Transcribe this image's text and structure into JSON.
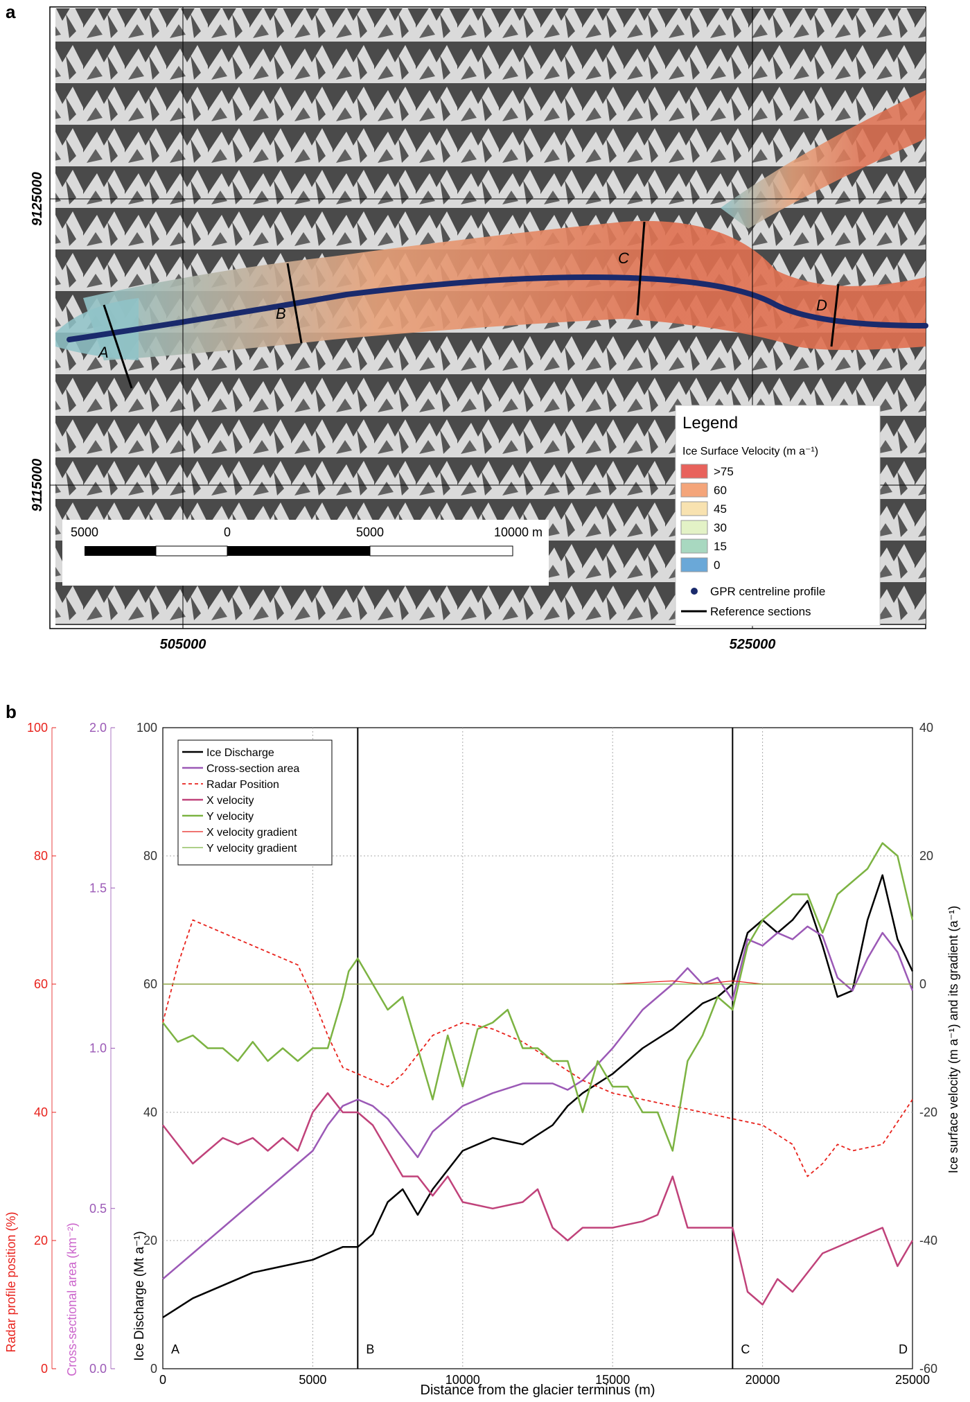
{
  "panel_a": {
    "label": "a",
    "x_ticks": [
      "505000",
      "525000"
    ],
    "y_ticks": [
      "9125000",
      "9115000"
    ],
    "section_labels": [
      "A",
      "B",
      "C",
      "D"
    ],
    "scalebar": {
      "labels": [
        "5000",
        "0",
        "5000",
        "10000 m"
      ]
    },
    "legend": {
      "title": "Legend",
      "subtitle": "Ice Surface Velocity (m a⁻¹)",
      "classes": [
        {
          "label": ">75",
          "color": "#e8625c"
        },
        {
          "label": "60",
          "color": "#f4a57a"
        },
        {
          "label": "45",
          "color": "#f8e2b0"
        },
        {
          "label": "30",
          "color": "#e3f2c6"
        },
        {
          "label": "15",
          "color": "#a8d8c0"
        },
        {
          "label": "0",
          "color": "#6aa8d8"
        }
      ],
      "gpr_label": "GPR centreline profile",
      "ref_label": "Reference sections"
    }
  },
  "panel_b": {
    "label": "b",
    "chart_data": {
      "type": "line",
      "xlabel": "Distance from the glacier terminus (m)",
      "xlim": [
        0,
        25000
      ],
      "x_ticks": [
        "0",
        "5000",
        "10000",
        "15000",
        "20000",
        "25000"
      ],
      "y_axes": [
        {
          "label": "Ice Discharge (Mt a⁻¹)",
          "range": [
            0,
            100
          ],
          "ticks": [
            "0",
            "20",
            "40",
            "60",
            "80",
            "100"
          ],
          "color": "#333333"
        },
        {
          "label": "Ice surface velocity (m a⁻¹) and its gradient (a⁻¹)",
          "range": [
            -60,
            40
          ],
          "ticks": [
            "-60",
            "-40",
            "-20",
            "0",
            "20",
            "40"
          ],
          "color": "#333333"
        },
        {
          "label": "Cross-sectional area (km⁻²)",
          "range": [
            0,
            2
          ],
          "ticks": [
            "0.0",
            "0.5",
            "1.0",
            "1.5",
            "2.0"
          ],
          "color": "#9b59b6"
        },
        {
          "label": "Radar profile position (%)",
          "range": [
            0,
            100
          ],
          "ticks": [
            "0",
            "20",
            "40",
            "60",
            "80",
            "100"
          ],
          "color": "#e8221c"
        }
      ],
      "section_lines": [
        {
          "label": "A",
          "x": 0
        },
        {
          "label": "B",
          "x": 6500
        },
        {
          "label": "C",
          "x": 19000
        },
        {
          "label": "D",
          "x": 25000
        }
      ],
      "legend": [
        "Ice Discharge",
        "Cross-section area",
        "Radar Position",
        "X velocity",
        "Y velocity",
        "X velocity gradient",
        "Y velocity gradient"
      ],
      "series": [
        {
          "name": "Ice Discharge",
          "axis": "left",
          "color": "#000000",
          "x": [
            0,
            1000,
            2000,
            3000,
            4000,
            5000,
            5500,
            6000,
            6500,
            7000,
            7500,
            8000,
            8500,
            9000,
            10000,
            11000,
            12000,
            13000,
            13500,
            14000,
            15000,
            16000,
            17000,
            18000,
            18500,
            19000,
            19500,
            20000,
            20500,
            21000,
            21500,
            22000,
            22500,
            23000,
            23500,
            24000,
            24500,
            25000
          ],
          "y": [
            8,
            11,
            13,
            15,
            16,
            17,
            18,
            19,
            19,
            21,
            26,
            28,
            24,
            28,
            34,
            36,
            35,
            38,
            41,
            43,
            46,
            50,
            53,
            57,
            58,
            60,
            68,
            70,
            68,
            70,
            73,
            66,
            58,
            59,
            70,
            77,
            67,
            62
          ]
        },
        {
          "name": "Cross-section area",
          "axis": "area",
          "color": "#9b59b6",
          "x": [
            0,
            1000,
            2000,
            3000,
            4000,
            5000,
            5500,
            6000,
            6500,
            7000,
            7500,
            8000,
            8500,
            9000,
            10000,
            11000,
            12000,
            13000,
            13500,
            14000,
            15000,
            16000,
            17000,
            17500,
            18000,
            18500,
            19000,
            19500,
            20000,
            20500,
            21000,
            21500,
            22000,
            22500,
            23000,
            23500,
            24000,
            24500,
            25000
          ],
          "y": [
            0.28,
            0.36,
            0.44,
            0.52,
            0.6,
            0.68,
            0.76,
            0.82,
            0.84,
            0.82,
            0.78,
            0.72,
            0.66,
            0.74,
            0.82,
            0.86,
            0.89,
            0.89,
            0.87,
            0.9,
            1.0,
            1.12,
            1.2,
            1.25,
            1.2,
            1.22,
            1.15,
            1.34,
            1.32,
            1.36,
            1.34,
            1.38,
            1.35,
            1.22,
            1.18,
            1.28,
            1.36,
            1.3,
            1.18
          ]
        },
        {
          "name": "Radar Position",
          "axis": "radar",
          "color": "#e8221c",
          "x": [
            0,
            500,
            1000,
            2000,
            3000,
            4000,
            4500,
            5000,
            5500,
            6000,
            6500,
            7000,
            7500,
            8000,
            9000,
            10000,
            11000,
            12000,
            13000,
            14000,
            15000,
            16000,
            17000,
            18000,
            19000,
            20000,
            21000,
            21500,
            22000,
            22500,
            23000,
            24000,
            25000
          ],
          "y": [
            54,
            63,
            70,
            68,
            66,
            64,
            63,
            58,
            52,
            47,
            46,
            45,
            44,
            46,
            52,
            54,
            53,
            51,
            48,
            45,
            43,
            42,
            41,
            40,
            39,
            38,
            35,
            30,
            32,
            35,
            34,
            35,
            42
          ]
        },
        {
          "name": "X velocity",
          "axis": "right",
          "color": "#c0427a",
          "x": [
            0,
            500,
            1000,
            1500,
            2000,
            2500,
            3000,
            3500,
            4000,
            4500,
            5000,
            5500,
            6000,
            6500,
            7000,
            7500,
            8000,
            8500,
            9000,
            9500,
            10000,
            11000,
            12000,
            12500,
            13000,
            13500,
            14000,
            15000,
            16000,
            16500,
            17000,
            17500,
            18000,
            19000,
            19500,
            20000,
            20500,
            21000,
            22000,
            23000,
            24000,
            24500,
            25000
          ],
          "y": [
            -22,
            -25,
            -28,
            -26,
            -24,
            -25,
            -24,
            -26,
            -24,
            -26,
            -20,
            -17,
            -20,
            -20,
            -22,
            -26,
            -30,
            -30,
            -33,
            -30,
            -34,
            -35,
            -34,
            -32,
            -38,
            -40,
            -38,
            -38,
            -37,
            -36,
            -30,
            -38,
            -38,
            -38,
            -48,
            -50,
            -46,
            -48,
            -42,
            -40,
            -38,
            -44,
            -40
          ]
        },
        {
          "name": "Y velocity",
          "axis": "right",
          "color": "#7cb342",
          "x": [
            0,
            500,
            1000,
            1500,
            2000,
            2500,
            3000,
            3500,
            4000,
            4500,
            5000,
            5500,
            6000,
            6200,
            6500,
            7000,
            7500,
            8000,
            8500,
            9000,
            9500,
            10000,
            10500,
            11000,
            11500,
            12000,
            12500,
            13000,
            13500,
            14000,
            14500,
            15000,
            15500,
            16000,
            16500,
            17000,
            17500,
            18000,
            18500,
            19000,
            19500,
            20000,
            20500,
            21000,
            21500,
            22000,
            22500,
            23000,
            23500,
            24000,
            24500,
            25000
          ],
          "y": [
            -6,
            -9,
            -8,
            -10,
            -10,
            -12,
            -9,
            -12,
            -10,
            -12,
            -10,
            -10,
            -2,
            2,
            4,
            0,
            -4,
            -2,
            -10,
            -18,
            -8,
            -16,
            -7,
            -6,
            -4,
            -10,
            -10,
            -12,
            -12,
            -20,
            -12,
            -16,
            -16,
            -20,
            -20,
            -26,
            -12,
            -8,
            -2,
            -4,
            6,
            10,
            12,
            14,
            14,
            8,
            14,
            16,
            18,
            22,
            20,
            10
          ]
        },
        {
          "name": "X velocity gradient",
          "axis": "right",
          "color": "#e8221c",
          "x": [
            0,
            5000,
            10000,
            15000,
            17000,
            18000,
            19000,
            20000,
            22000,
            25000
          ],
          "y": [
            0,
            0,
            0,
            0,
            0.5,
            0,
            0.5,
            0,
            0,
            0
          ]
        },
        {
          "name": "Y velocity gradient",
          "axis": "right",
          "color": "#7cb342",
          "x": [
            0,
            5000,
            10000,
            15000,
            17000,
            18000,
            19000,
            20000,
            22000,
            25000
          ],
          "y": [
            0,
            0,
            0,
            0,
            0,
            0,
            0,
            0,
            0,
            0
          ]
        }
      ]
    }
  }
}
